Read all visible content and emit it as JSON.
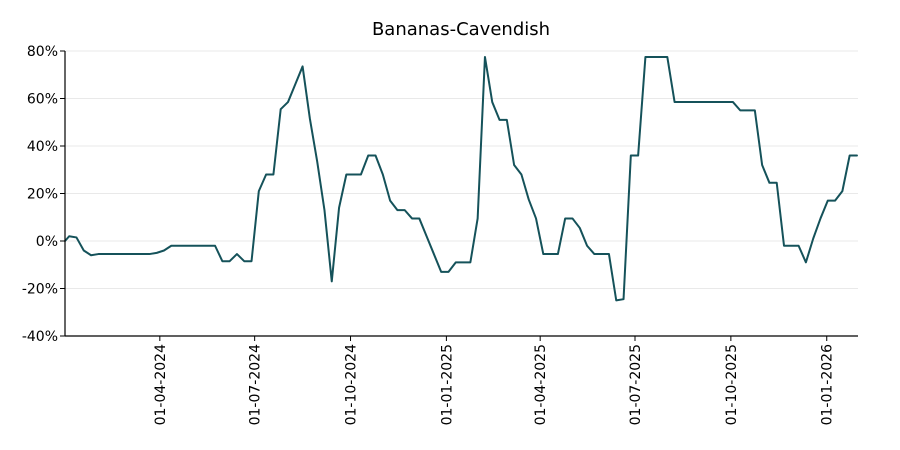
{
  "chart_data": {
    "type": "line",
    "title": "Bananas-Cavendish",
    "xlabel": "",
    "ylabel": "",
    "ylim": [
      -40,
      80
    ],
    "xlim": [
      "2024-01-01",
      "2026-01-31"
    ],
    "grid": "horizontal",
    "legend": "none",
    "colors": {
      "line": "#15525a",
      "grid": "#e9e9e9",
      "axis": "#000000"
    },
    "y_ticks": [
      -40,
      -20,
      0,
      20,
      40,
      60,
      80
    ],
    "y_tick_labels": [
      "-40%",
      "-20%",
      "0%",
      "20%",
      "40%",
      "60%",
      "80%"
    ],
    "x_ticks": [
      "2024-04-01",
      "2024-07-01",
      "2024-10-01",
      "2025-01-01",
      "2025-04-01",
      "2025-07-01",
      "2025-10-01",
      "2026-01-01"
    ],
    "x_tick_labels": [
      "01-04-2024",
      "01-07-2024",
      "01-10-2024",
      "01-01-2025",
      "01-04-2025",
      "01-07-2025",
      "01-10-2025",
      "01-01-2026"
    ],
    "series": [
      {
        "x": [
          "2024-01-01",
          "2024-01-05",
          "2024-01-12",
          "2024-01-19",
          "2024-01-26",
          "2024-02-02",
          "2024-02-09",
          "2024-02-16",
          "2024-02-23",
          "2024-03-01",
          "2024-03-08",
          "2024-03-15",
          "2024-03-22",
          "2024-03-29",
          "2024-04-05",
          "2024-04-12",
          "2024-04-19",
          "2024-04-26",
          "2024-05-03",
          "2024-05-10",
          "2024-05-17",
          "2024-05-24",
          "2024-05-31",
          "2024-06-07",
          "2024-06-14",
          "2024-06-21",
          "2024-06-28",
          "2024-07-05",
          "2024-07-12",
          "2024-07-19",
          "2024-07-26",
          "2024-08-02",
          "2024-08-09",
          "2024-08-16",
          "2024-08-23",
          "2024-08-30",
          "2024-09-06",
          "2024-09-13",
          "2024-09-20",
          "2024-09-27",
          "2024-10-04",
          "2024-10-11",
          "2024-10-18",
          "2024-10-25",
          "2024-11-01",
          "2024-11-08",
          "2024-11-15",
          "2024-11-22",
          "2024-11-29",
          "2024-12-06",
          "2024-12-13",
          "2024-12-20",
          "2024-12-27",
          "2025-01-03",
          "2025-01-10",
          "2025-01-17",
          "2025-01-24",
          "2025-01-31",
          "2025-02-07",
          "2025-02-14",
          "2025-02-21",
          "2025-02-28",
          "2025-03-07",
          "2025-03-14",
          "2025-03-21",
          "2025-03-28",
          "2025-04-04",
          "2025-04-11",
          "2025-04-18",
          "2025-04-25",
          "2025-05-02",
          "2025-05-09",
          "2025-05-16",
          "2025-05-23",
          "2025-05-30",
          "2025-06-06",
          "2025-06-13",
          "2025-06-20",
          "2025-06-27",
          "2025-07-04",
          "2025-07-11",
          "2025-07-18",
          "2025-07-25",
          "2025-08-01",
          "2025-08-08",
          "2025-08-15",
          "2025-08-22",
          "2025-08-29",
          "2025-09-05",
          "2025-09-12",
          "2025-09-19",
          "2025-09-26",
          "2025-10-03",
          "2025-10-10",
          "2025-10-17",
          "2025-10-24",
          "2025-10-31",
          "2025-11-07",
          "2025-11-14",
          "2025-11-21",
          "2025-11-28",
          "2025-12-05",
          "2025-12-12",
          "2025-12-19",
          "2025-12-26",
          "2026-01-02",
          "2026-01-09",
          "2026-01-16",
          "2026-01-23",
          "2026-01-30"
        ],
        "values": [
          0,
          2,
          1.5,
          -4,
          -6,
          -5.5,
          -5.5,
          -5.5,
          -5.5,
          -5.5,
          -5.5,
          -5.5,
          -5.5,
          -5,
          -4,
          -2,
          -2,
          -2,
          -2,
          -2,
          -2,
          -2,
          -8.5,
          -8.5,
          -5.5,
          -8.5,
          -8.5,
          21,
          28,
          28,
          55.5,
          58.5,
          66,
          73.5,
          51.5,
          33.5,
          13,
          -17,
          14,
          28,
          28,
          28,
          36,
          36,
          28,
          17,
          13,
          13,
          9.5,
          9.5,
          2,
          -5.5,
          -13,
          -13,
          -9,
          -9,
          -9,
          9.5,
          77.5,
          58.5,
          51,
          51,
          32,
          28,
          17.5,
          9.5,
          -5.5,
          -5.5,
          -5.5,
          9.5,
          9.5,
          5.5,
          -2,
          -5.5,
          -5.5,
          -5.5,
          -25,
          -24.5,
          36,
          36,
          77.5,
          77.5,
          77.5,
          77.5,
          58.5,
          58.5,
          58.5,
          58.5,
          58.5,
          58.5,
          58.5,
          58.5,
          58.5,
          55,
          55,
          55,
          32,
          24.5,
          24.5,
          -2,
          -2,
          -2,
          -9,
          1,
          9.5,
          17,
          17,
          21,
          36,
          36
        ]
      }
    ]
  }
}
